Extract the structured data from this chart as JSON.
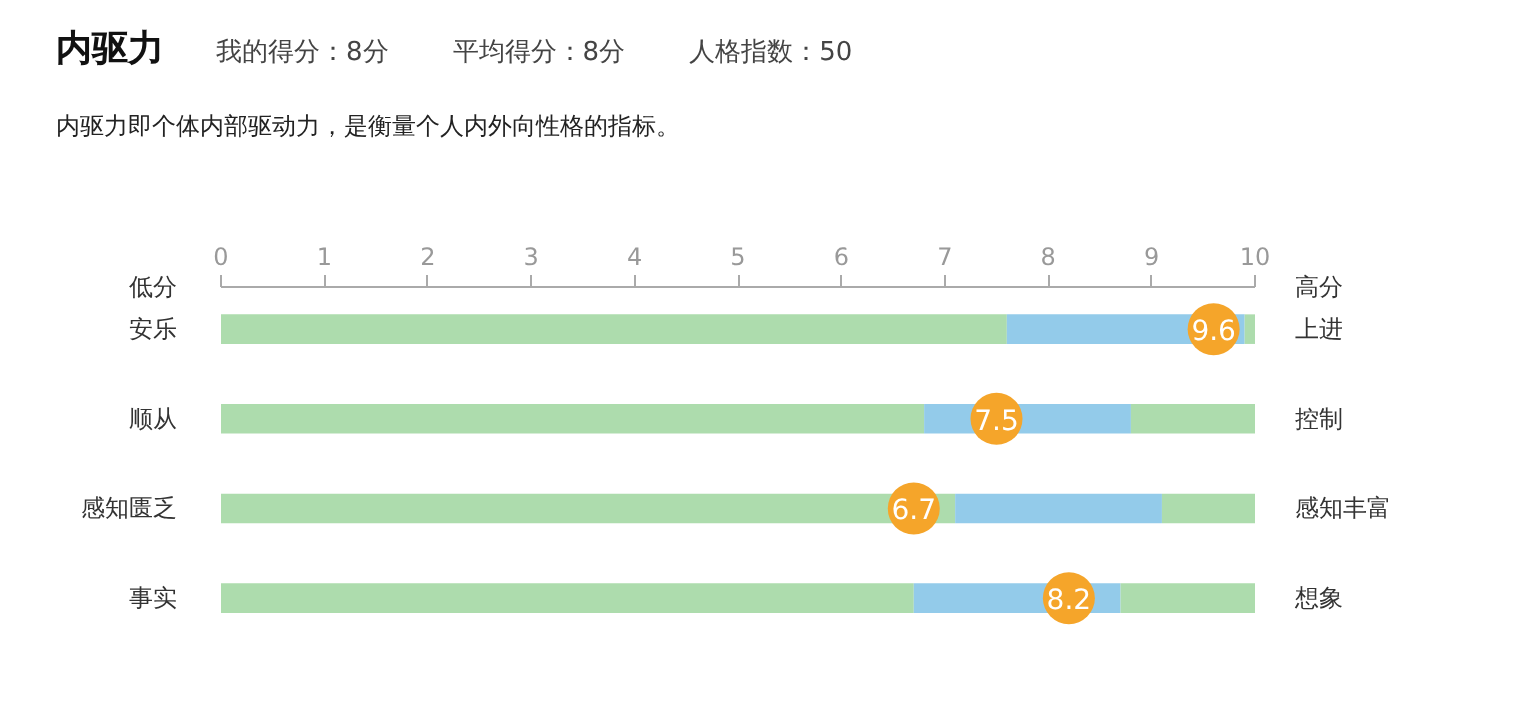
{
  "chart_data": {
    "type": "bar",
    "orientation": "horizontal",
    "stacked": true,
    "title": "内驱力",
    "subtitle": "内驱力即个体内部驱动力，是衡量个人内外向性格的指标。",
    "categories": [
      "安乐",
      "顺从",
      "感知匮乏",
      "事实"
    ],
    "series": [
      {
        "color": "#addcad",
        "values": [
          7.6,
          6.8,
          7.1,
          6.7
        ]
      },
      {
        "color": "#93cbea",
        "values": [
          2.3,
          2,
          2,
          2
        ]
      },
      {
        "color": "#addcad",
        "values": [
          0.1,
          1.2,
          0.9,
          1.3
        ]
      },
      {
        "type": "scatter",
        "color": "#f5a52a",
        "values": [
          9.6,
          7.5,
          6.7,
          8.2
        ],
        "value_labels": [
          "9.6",
          "7.5",
          "6.7",
          "8.2"
        ]
      }
    ],
    "xlim": [
      0,
      10
    ],
    "xticks": [
      0,
      1,
      2,
      3,
      4,
      5,
      6,
      7,
      8,
      9,
      10
    ],
    "grid": false,
    "marker": "circle",
    "annotations": [
      "我的得分：8分",
      "平均得分：8分",
      "人格指数：50",
      "低分",
      "高分",
      "上进",
      "控制",
      "感知丰富",
      "想象"
    ]
  }
}
